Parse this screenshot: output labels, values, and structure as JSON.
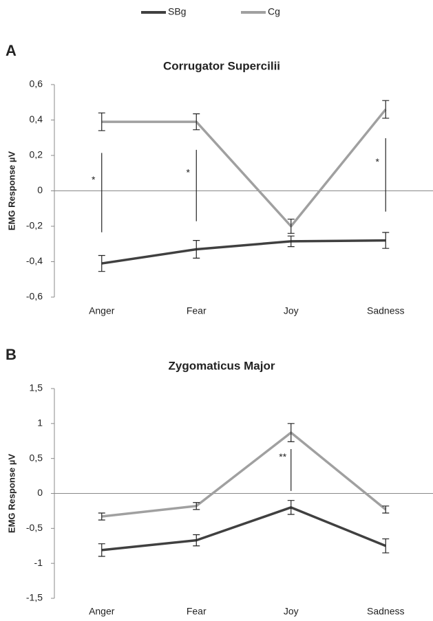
{
  "chart_data": [
    {
      "type": "line",
      "panel": "A",
      "title": "Corrugator Supercilii",
      "y_label": "EMG Response µV",
      "categories": [
        "Anger",
        "Fear",
        "Joy",
        "Sadness"
      ],
      "series": [
        {
          "name": "SBg",
          "color": "#404040",
          "values": [
            -0.41,
            -0.33,
            -0.285,
            -0.28
          ],
          "errors": [
            0.045,
            0.05,
            0.03,
            0.045
          ]
        },
        {
          "name": "Cg",
          "color": "#a0a0a0",
          "values": [
            0.39,
            0.39,
            -0.2,
            0.46
          ],
          "errors": [
            0.05,
            0.045,
            0.04,
            0.05
          ]
        }
      ],
      "ylim": [
        -0.6,
        0.6
      ],
      "yticks": [
        {
          "value": -0.6,
          "label": "-0,6"
        },
        {
          "value": -0.4,
          "label": "-0,4"
        },
        {
          "value": -0.2,
          "label": "-0,2"
        },
        0,
        {
          "value": 0.2,
          "label": "0,2"
        },
        {
          "value": 0.4,
          "label": "0,4"
        },
        {
          "value": 0.6,
          "label": "0,6"
        }
      ],
      "annotations": [
        {
          "text": "*",
          "category": "Anger"
        },
        {
          "text": "*",
          "category": "Fear"
        },
        {
          "text": "*",
          "category": "Sadness"
        }
      ]
    },
    {
      "type": "line",
      "panel": "B",
      "title": "Zygomaticus Major",
      "y_label": "EMG Response µV",
      "categories": [
        "Anger",
        "Fear",
        "Joy",
        "Sadness"
      ],
      "series": [
        {
          "color": "#404040",
          "values": [
            -0.81,
            -0.67,
            -0.2,
            -0.75
          ],
          "errors": [
            0.09,
            0.08,
            0.1,
            0.1
          ]
        },
        {
          "color": "#a0a0a0",
          "values": [
            -0.33,
            -0.18,
            0.87,
            -0.23
          ],
          "errors": [
            0.05,
            0.05,
            0.13,
            0.05
          ]
        }
      ],
      "ylim": [
        -1.5,
        1.5
      ],
      "yticks": [
        {
          "value": -1.5,
          "label": "-1,5"
        },
        -1,
        {
          "value": -0.5,
          "label": "-0,5"
        },
        0,
        {
          "value": 0.5,
          "label": "0,5"
        },
        1,
        {
          "value": 1.5,
          "label": "1,5"
        }
      ],
      "annotations": [
        {
          "text": "**",
          "category": "Joy"
        }
      ]
    }
  ]
}
